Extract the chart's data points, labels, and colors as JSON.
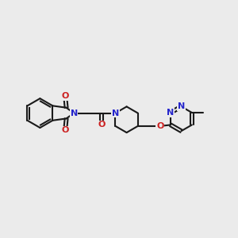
{
  "bg_color": "#ebebeb",
  "bond_color": "#1a1a1a",
  "n_color": "#2525cc",
  "o_color": "#cc2020",
  "lw": 1.5,
  "fs": 8.0,
  "xlim": [
    0,
    10
  ],
  "ylim": [
    1,
    8
  ]
}
